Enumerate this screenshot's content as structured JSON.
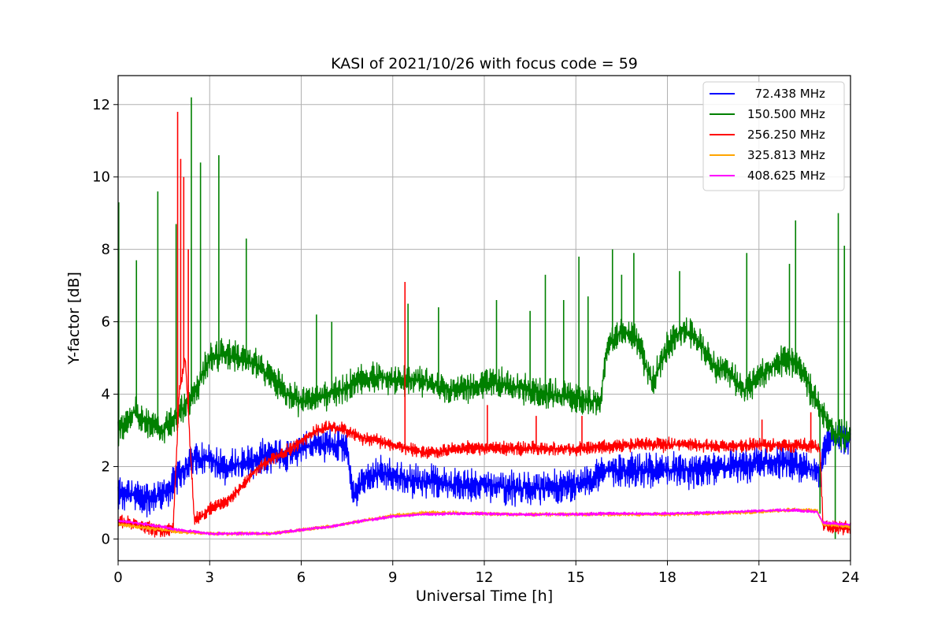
{
  "chart_data": {
    "type": "line",
    "title": "KASI of 2021/10/26 with focus code = 59",
    "xlabel": "Universal Time [h]",
    "ylabel": "Y-factor [dB]",
    "xlim": [
      0,
      24
    ],
    "ylim": [
      -0.6,
      12.8
    ],
    "xticks": [
      0,
      3,
      6,
      9,
      12,
      15,
      18,
      21,
      24
    ],
    "yticks": [
      0,
      2,
      4,
      6,
      8,
      10,
      12
    ],
    "grid": true,
    "legend_position": "top-right",
    "series": [
      {
        "name": "  72.438 MHz",
        "color": "#0000ff",
        "noise": 0.55,
        "x": [
          0,
          0.5,
          1.0,
          1.5,
          1.8,
          2.0,
          2.5,
          3.0,
          3.5,
          4.0,
          4.5,
          5.0,
          5.5,
          6.0,
          6.5,
          7.0,
          7.5,
          7.7,
          8.0,
          8.5,
          9.0,
          9.5,
          10,
          11,
          12,
          13,
          14,
          15,
          15.5,
          16,
          17,
          18,
          19,
          20,
          21,
          22,
          22.5,
          23.0,
          23.2,
          23.5,
          24
        ],
        "y": [
          1.3,
          1.2,
          1.1,
          1.3,
          1.5,
          1.8,
          2.2,
          2.2,
          2.0,
          2.1,
          2.2,
          2.3,
          2.3,
          2.5,
          2.6,
          2.6,
          2.6,
          1.2,
          1.6,
          1.8,
          1.8,
          1.6,
          1.6,
          1.5,
          1.5,
          1.4,
          1.4,
          1.5,
          1.6,
          1.9,
          1.9,
          1.9,
          1.9,
          2.0,
          2.1,
          2.1,
          2.0,
          1.8,
          2.6,
          2.8,
          2.8
        ]
      },
      {
        "name": "150.500 MHz",
        "color": "#008000",
        "noise": 0.5,
        "x": [
          0,
          0.5,
          1.0,
          1.5,
          2.0,
          2.5,
          3.0,
          3.5,
          4.0,
          4.5,
          5.0,
          5.5,
          6.0,
          6.5,
          7.0,
          7.5,
          8.0,
          8.5,
          9.0,
          10,
          10.5,
          11,
          12,
          12.5,
          13,
          14,
          15,
          15.5,
          15.8,
          16,
          16.5,
          17,
          17.5,
          18,
          18.5,
          19,
          19.5,
          20,
          20.5,
          21,
          21.5,
          22,
          22.5,
          23,
          23.5,
          24
        ],
        "y": [
          3.0,
          3.5,
          3.2,
          3.0,
          3.5,
          4.0,
          5.0,
          5.1,
          5.0,
          4.8,
          4.5,
          4.0,
          3.8,
          3.9,
          4.0,
          4.2,
          4.4,
          4.5,
          4.4,
          4.4,
          4.2,
          4.1,
          4.3,
          4.3,
          4.2,
          4.0,
          3.9,
          3.8,
          3.8,
          5.2,
          5.8,
          5.5,
          4.3,
          5.3,
          5.8,
          5.5,
          4.8,
          4.6,
          4.1,
          4.5,
          4.8,
          5.0,
          4.5,
          3.6,
          2.9,
          2.8
        ]
      },
      {
        "name": "256.250 MHz",
        "color": "#ff0000",
        "noise": 0.22,
        "x": [
          0,
          0.5,
          1.0,
          1.5,
          1.8,
          2.0,
          2.2,
          2.5,
          3.0,
          3.5,
          4.0,
          4.5,
          5.0,
          5.5,
          6.0,
          6.5,
          7.0,
          7.5,
          8.0,
          8.5,
          9.0,
          9.5,
          10,
          10.5,
          11,
          12,
          13,
          14,
          15,
          16,
          17,
          18,
          19,
          20,
          21,
          22,
          22.5,
          23.0,
          23.1,
          23.5,
          24
        ],
        "y": [
          0.5,
          0.4,
          0.3,
          0.2,
          0.3,
          4.0,
          5.0,
          0.5,
          0.8,
          1.0,
          1.4,
          1.9,
          2.2,
          2.4,
          2.7,
          3.0,
          3.1,
          3.0,
          2.8,
          2.7,
          2.6,
          2.5,
          2.4,
          2.4,
          2.5,
          2.5,
          2.5,
          2.5,
          2.5,
          2.55,
          2.6,
          2.6,
          2.6,
          2.55,
          2.6,
          2.6,
          2.6,
          2.5,
          0.4,
          0.3,
          0.3
        ]
      },
      {
        "name": "325.813 MHz",
        "color": "#ffa500",
        "noise": 0.06,
        "x": [
          0,
          1,
          2,
          3,
          4,
          5,
          6,
          7,
          8,
          9,
          10,
          11,
          12,
          13,
          14,
          15,
          16,
          17,
          18,
          19,
          20,
          21,
          22,
          22.9,
          23.1,
          24
        ],
        "y": [
          0.4,
          0.3,
          0.2,
          0.15,
          0.15,
          0.15,
          0.25,
          0.35,
          0.5,
          0.65,
          0.72,
          0.72,
          0.7,
          0.68,
          0.68,
          0.68,
          0.68,
          0.68,
          0.68,
          0.7,
          0.72,
          0.75,
          0.8,
          0.8,
          0.4,
          0.35
        ]
      },
      {
        "name": "408.625 MHz",
        "color": "#ff00ff",
        "noise": 0.05,
        "x": [
          0,
          1,
          2,
          3,
          4,
          5,
          6,
          7,
          8,
          9,
          10,
          11,
          12,
          13,
          14,
          15,
          16,
          17,
          18,
          19,
          20,
          21,
          22,
          22.9,
          23.1,
          24
        ],
        "y": [
          0.5,
          0.4,
          0.25,
          0.15,
          0.15,
          0.15,
          0.25,
          0.35,
          0.5,
          0.62,
          0.68,
          0.7,
          0.7,
          0.68,
          0.68,
          0.68,
          0.7,
          0.7,
          0.7,
          0.72,
          0.74,
          0.78,
          0.8,
          0.75,
          0.45,
          0.4
        ]
      }
    ],
    "spikes": [
      {
        "series": 1,
        "x": 0.02,
        "y": 9.3
      },
      {
        "series": 1,
        "x": 0.6,
        "y": 7.7
      },
      {
        "series": 1,
        "x": 1.3,
        "y": 9.6
      },
      {
        "series": 1,
        "x": 1.9,
        "y": 8.7
      },
      {
        "series": 1,
        "x": 2.4,
        "y": 12.2
      },
      {
        "series": 1,
        "x": 2.7,
        "y": 10.4
      },
      {
        "series": 1,
        "x": 3.3,
        "y": 10.6
      },
      {
        "series": 1,
        "x": 4.2,
        "y": 8.3
      },
      {
        "series": 1,
        "x": 6.5,
        "y": 6.2
      },
      {
        "series": 1,
        "x": 7.0,
        "y": 6.0
      },
      {
        "series": 1,
        "x": 9.5,
        "y": 6.5
      },
      {
        "series": 1,
        "x": 10.5,
        "y": 6.4
      },
      {
        "series": 1,
        "x": 12.4,
        "y": 6.6
      },
      {
        "series": 1,
        "x": 13.5,
        "y": 6.3
      },
      {
        "series": 1,
        "x": 14.0,
        "y": 7.3
      },
      {
        "series": 1,
        "x": 14.6,
        "y": 6.6
      },
      {
        "series": 1,
        "x": 15.1,
        "y": 7.8
      },
      {
        "series": 1,
        "x": 15.4,
        "y": 6.7
      },
      {
        "series": 1,
        "x": 16.2,
        "y": 8.0
      },
      {
        "series": 1,
        "x": 16.5,
        "y": 7.3
      },
      {
        "series": 1,
        "x": 16.9,
        "y": 7.9
      },
      {
        "series": 1,
        "x": 18.4,
        "y": 7.4
      },
      {
        "series": 1,
        "x": 20.6,
        "y": 7.9
      },
      {
        "series": 1,
        "x": 22.0,
        "y": 7.6
      },
      {
        "series": 1,
        "x": 22.2,
        "y": 8.8
      },
      {
        "series": 1,
        "x": 23.0,
        "y": 0.7
      },
      {
        "series": 1,
        "x": 23.5,
        "y": 0.0
      },
      {
        "series": 1,
        "x": 23.6,
        "y": 9.0
      },
      {
        "series": 1,
        "x": 23.8,
        "y": 8.1
      },
      {
        "series": 2,
        "x": 1.95,
        "y": 11.8
      },
      {
        "series": 2,
        "x": 2.05,
        "y": 10.5
      },
      {
        "series": 2,
        "x": 2.15,
        "y": 10.0
      },
      {
        "series": 2,
        "x": 2.3,
        "y": 8.0
      },
      {
        "series": 2,
        "x": 9.4,
        "y": 7.1
      },
      {
        "series": 2,
        "x": 12.1,
        "y": 3.7
      },
      {
        "series": 2,
        "x": 13.7,
        "y": 3.4
      },
      {
        "series": 2,
        "x": 15.2,
        "y": 3.4
      },
      {
        "series": 2,
        "x": 21.1,
        "y": 3.3
      },
      {
        "series": 2,
        "x": 22.7,
        "y": 3.5
      }
    ]
  }
}
